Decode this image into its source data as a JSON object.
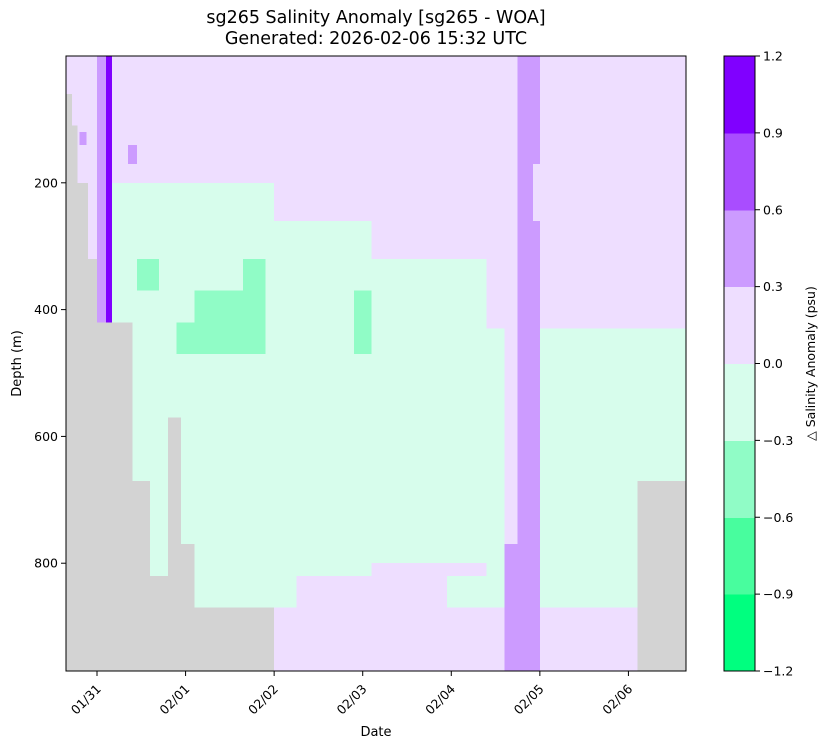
{
  "chart_data": {
    "type": "heatmap",
    "title_line1": "sg265 Salinity Anomaly [sg265 - WOA]",
    "title_line2": "Generated: 2026-02-06 15:32 UTC",
    "xlabel": "Date",
    "ylabel": "Depth (m)",
    "colorbar_label": "△ Salinity Anomaly (psu)",
    "x_ticks": [
      "01/31",
      "02/01",
      "02/02",
      "02/03",
      "02/04",
      "02/05",
      "02/06"
    ],
    "x_range_days": [
      30.65,
      37.65
    ],
    "y_ticks": [
      200,
      400,
      600,
      800
    ],
    "y_range_m": [
      0,
      970
    ],
    "y_inverted": true,
    "colorbar_levels": [
      -1.2,
      -0.9,
      -0.6,
      -0.3,
      0.0,
      0.3,
      0.6,
      0.9,
      1.2
    ],
    "colorbar_tick_labels": [
      "−1.2",
      "−0.9",
      "−0.6",
      "−0.3",
      "0.0",
      "0.3",
      "0.6",
      "0.9",
      "1.2"
    ],
    "colors": {
      "bin_-1.2_-0.9": "#00ff7f",
      "bin_-0.9_-0.6": "#48fd9e",
      "bin_-0.6_-0.3": "#90fcc6",
      "bin_-0.3_0.0": "#d7fdec",
      "bin_0.0_0.3": "#eedeff",
      "bin_0.3_0.6": "#cc9bff",
      "bin_0.6_0.9": "#a94dff",
      "bin_0.9_1.2": "#8000ff",
      "no_data": "#d3d3d3"
    },
    "background_value": 0.15,
    "regions": [
      {
        "x0": 30.65,
        "x1": 37.65,
        "y0": 0,
        "y1": 970,
        "value": 0.15
      },
      {
        "x0": 31.0,
        "x1": 33.0,
        "y0": 200,
        "y1": 970,
        "value": -0.15
      },
      {
        "x0": 33.0,
        "x1": 34.1,
        "y0": 260,
        "y1": 970,
        "value": -0.15
      },
      {
        "x0": 34.1,
        "x1": 35.4,
        "y0": 320,
        "y1": 970,
        "value": -0.15
      },
      {
        "x0": 35.4,
        "x1": 35.6,
        "y0": 430,
        "y1": 970,
        "value": -0.15
      },
      {
        "x0": 36.0,
        "x1": 37.65,
        "y0": 430,
        "y1": 970,
        "value": -0.15
      },
      {
        "x0": 33.0,
        "x1": 37.65,
        "y0": 870,
        "y1": 970,
        "value": 0.15
      },
      {
        "x0": 32.2,
        "x1": 34.1,
        "y0": 820,
        "y1": 870,
        "value": -0.15
      },
      {
        "x0": 33.25,
        "x1": 34.1,
        "y0": 820,
        "y1": 870,
        "value": 0.15
      },
      {
        "x0": 34.1,
        "x1": 35.4,
        "y0": 800,
        "y1": 870,
        "value": 0.15
      },
      {
        "x0": 34.95,
        "x1": 35.4,
        "y0": 820,
        "y1": 870,
        "value": -0.15
      },
      {
        "x0": 31.45,
        "x1": 31.7,
        "y0": 320,
        "y1": 370,
        "value": -0.45
      },
      {
        "x0": 32.1,
        "x1": 32.9,
        "y0": 370,
        "y1": 470,
        "value": -0.45
      },
      {
        "x0": 31.9,
        "x1": 32.9,
        "y0": 420,
        "y1": 470,
        "value": -0.45
      },
      {
        "x0": 32.65,
        "x1": 32.9,
        "y0": 320,
        "y1": 370,
        "value": -0.45
      },
      {
        "x0": 33.9,
        "x1": 34.1,
        "y0": 370,
        "y1": 470,
        "value": -0.45
      },
      {
        "x0": 30.8,
        "x1": 30.88,
        "y0": 120,
        "y1": 140,
        "value": 0.45
      },
      {
        "x0": 31.35,
        "x1": 31.45,
        "y0": 140,
        "y1": 170,
        "value": 0.45
      },
      {
        "x0": 31.0,
        "x1": 31.1,
        "y0": 0,
        "y1": 570,
        "value": 0.45
      },
      {
        "x0": 31.1,
        "x1": 31.15,
        "y0": 0,
        "y1": 570,
        "value": 0.75
      },
      {
        "x0": 31.1,
        "x1": 31.17,
        "y0": 0,
        "y1": 570,
        "value": 1.05
      },
      {
        "x0": 35.75,
        "x1": 35.92,
        "y0": 0,
        "y1": 970,
        "value": 0.45
      },
      {
        "x0": 35.92,
        "x1": 36.0,
        "y0": 0,
        "y1": 970,
        "value": 0.45
      },
      {
        "x0": 35.6,
        "x1": 35.75,
        "y0": 770,
        "y1": 970,
        "value": 0.45
      },
      {
        "x0": 35.92,
        "x1": 36.0,
        "y0": 170,
        "y1": 260,
        "value": 0.15
      },
      {
        "x0": 30.65,
        "x1": 30.72,
        "y0": 60,
        "y1": 970,
        "value": null
      },
      {
        "x0": 30.72,
        "x1": 30.78,
        "y0": 110,
        "y1": 970,
        "value": null
      },
      {
        "x0": 30.78,
        "x1": 30.9,
        "y0": 200,
        "y1": 970,
        "value": null
      },
      {
        "x0": 30.9,
        "x1": 31.0,
        "y0": 320,
        "y1": 970,
        "value": null
      },
      {
        "x0": 31.0,
        "x1": 31.4,
        "y0": 420,
        "y1": 970,
        "value": null
      },
      {
        "x0": 31.4,
        "x1": 31.6,
        "y0": 670,
        "y1": 970,
        "value": null
      },
      {
        "x0": 31.6,
        "x1": 31.8,
        "y0": 820,
        "y1": 970,
        "value": null
      },
      {
        "x0": 31.8,
        "x1": 31.95,
        "y0": 570,
        "y1": 970,
        "value": null
      },
      {
        "x0": 31.95,
        "x1": 32.1,
        "y0": 770,
        "y1": 970,
        "value": null
      },
      {
        "x0": 32.1,
        "x1": 33.0,
        "y0": 870,
        "y1": 970,
        "value": null
      },
      {
        "x0": 37.1,
        "x1": 37.65,
        "y0": 670,
        "y1": 970,
        "value": null
      }
    ]
  }
}
